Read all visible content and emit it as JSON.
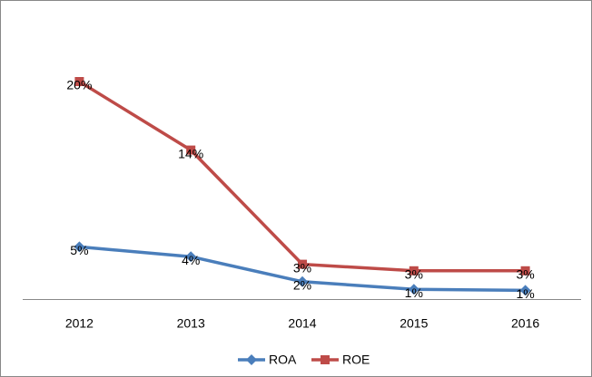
{
  "chart_data": {
    "type": "line",
    "categories": [
      "2012",
      "2013",
      "2014",
      "2015",
      "2016"
    ],
    "series": [
      {
        "name": "ROA",
        "color": "#4a7ebb",
        "marker": "diamond",
        "values": [
          4.8,
          3.9,
          1.6,
          0.9,
          0.8
        ],
        "value_labels": [
          "5%",
          "4%",
          "2%",
          "1%",
          "1%"
        ]
      },
      {
        "name": "ROE",
        "color": "#be4b48",
        "marker": "square",
        "values": [
          20,
          13.7,
          3.2,
          2.6,
          2.6
        ],
        "value_labels": [
          "20%",
          "14%",
          "3%",
          "3%",
          "3%"
        ]
      }
    ],
    "ylim": [
      0,
      21
    ],
    "legend": "bottom"
  }
}
